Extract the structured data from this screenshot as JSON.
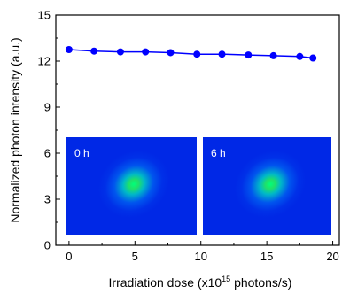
{
  "chart_data": {
    "type": "line",
    "title": "",
    "xlabel": "Irradiation dose (x10",
    "xlabel_exp": "15",
    "xlabel_tail": " photons/s)",
    "ylabel": "Normalized photon intensity (a.u.)",
    "xlim": [
      -1,
      20.5
    ],
    "ylim": [
      0,
      15
    ],
    "xticks": [
      0,
      5,
      10,
      15,
      20
    ],
    "yticks": [
      0,
      3,
      6,
      9,
      12,
      15
    ],
    "grid": false,
    "series": [
      {
        "color": "#0000ff",
        "marker": "circle",
        "x": [
          0,
          1.9,
          3.9,
          5.8,
          7.7,
          9.7,
          11.6,
          13.6,
          15.5,
          17.5,
          18.5
        ],
        "y": [
          12.75,
          12.65,
          12.6,
          12.6,
          12.55,
          12.45,
          12.45,
          12.4,
          12.35,
          12.3,
          12.2
        ]
      }
    ],
    "insets": [
      {
        "label": "0 h"
      },
      {
        "label": "6 h"
      }
    ]
  }
}
